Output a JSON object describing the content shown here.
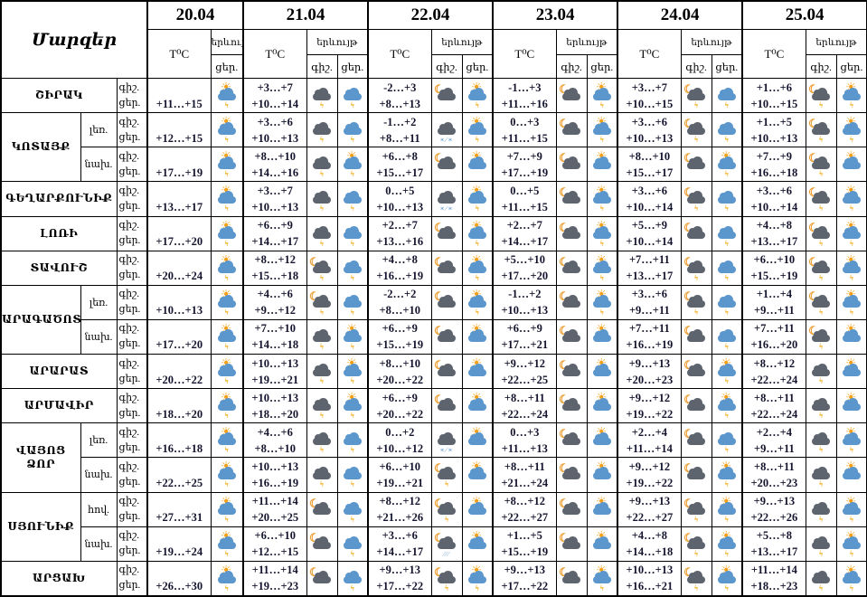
{
  "table": {
    "title_cell": "Մարզեր",
    "dates": [
      "20.04",
      "21.04",
      "22.04",
      "23.04",
      "24.04",
      "25.04"
    ],
    "col_headers": {
      "temp": "T⁰C",
      "weather": "երևույթ",
      "night": "գիշ.",
      "day": "ցեր."
    },
    "colors": {
      "border": "#000000",
      "temp_text": "#14142e",
      "sun": "#f49f16",
      "moon": "#ec9c2e",
      "cloud_blue": "#5b96cc",
      "cloud_dark": "#5e646e",
      "lightning": "#f2a80e"
    },
    "regions": [
      {
        "name": "ՇԻՐԱԿ",
        "rows": [
          {
            "sub": "",
            "cells": [
              {
                "n": "",
                "d": "+11…+15",
                "ni": "",
                "di": "sun-storm"
              },
              {
                "n": "+3…+7",
                "d": "+10…+14",
                "ni": "dark-storm",
                "di": "blue-storm"
              },
              {
                "n": "-2…+3",
                "d": "+8…+13",
                "ni": "moon-dark",
                "di": "sun-storm"
              },
              {
                "n": "-1…+3",
                "d": "+11…+16",
                "ni": "moon-dark",
                "di": "sun-storm"
              },
              {
                "n": "+3…+7",
                "d": "+10…+15",
                "ni": "moon-dark-storm",
                "di": "blue-storm"
              },
              {
                "n": "+1…+6",
                "d": "+10…+15",
                "ni": "moon-dark-storm",
                "di": "sun-storm"
              }
            ]
          }
        ]
      },
      {
        "name": "ԿՈՏԱՅՔ",
        "rows": [
          {
            "sub": "լեռ.",
            "cells": [
              {
                "n": "",
                "d": "+12…+15",
                "ni": "",
                "di": "sun-storm"
              },
              {
                "n": "+3…+6",
                "d": "+10…+13",
                "ni": "dark-storm",
                "di": "blue-storm"
              },
              {
                "n": "-1…+2",
                "d": "+8…+11",
                "ni": "dark-sleet",
                "di": "sun-storm"
              },
              {
                "n": "0…+3",
                "d": "+11…+15",
                "ni": "moon-dark",
                "di": "sun-storm"
              },
              {
                "n": "+3…+6",
                "d": "+10…+13",
                "ni": "moon-dark-storm",
                "di": "blue-storm"
              },
              {
                "n": "+1…+5",
                "d": "+10…+13",
                "ni": "moon-dark-storm",
                "di": "sun-storm"
              }
            ]
          },
          {
            "sub": "նախ.",
            "cells": [
              {
                "n": "",
                "d": "+17…+19",
                "ni": "",
                "di": "sun-storm"
              },
              {
                "n": "+8…+10",
                "d": "+14…+16",
                "ni": "dark-storm",
                "di": "sun-storm"
              },
              {
                "n": "+6…+8",
                "d": "+15…+17",
                "ni": "moon-dark",
                "di": "sun-cloud"
              },
              {
                "n": "+7…+9",
                "d": "+17…+19",
                "ni": "moon-dark",
                "di": "sun-cloud"
              },
              {
                "n": "+8…+10",
                "d": "+15…+17",
                "ni": "moon-dark",
                "di": "sun-storm"
              },
              {
                "n": "+7…+9",
                "d": "+16…+18",
                "ni": "moon-dark-storm",
                "di": "sun-cloud"
              }
            ]
          }
        ]
      },
      {
        "name": "ԳԵՂԱՐՔՈՒՆԻՔ",
        "rows": [
          {
            "sub": "",
            "cells": [
              {
                "n": "",
                "d": "+13…+17",
                "ni": "",
                "di": "sun-storm"
              },
              {
                "n": "+3…+7",
                "d": "+10…+13",
                "ni": "dark-storm",
                "di": "blue-storm"
              },
              {
                "n": "0…+5",
                "d": "+10…+13",
                "ni": "dark-sleet",
                "di": "sun-storm"
              },
              {
                "n": "0…+5",
                "d": "+11…+15",
                "ni": "moon-dark",
                "di": "sun-storm"
              },
              {
                "n": "+3…+6",
                "d": "+10…+14",
                "ni": "moon-dark-storm",
                "di": "blue-storm"
              },
              {
                "n": "+3…+6",
                "d": "+10…+14",
                "ni": "moon-dark-storm",
                "di": "sun-storm"
              }
            ]
          }
        ]
      },
      {
        "name": "ԼՈՌԻ",
        "rows": [
          {
            "sub": "",
            "cells": [
              {
                "n": "",
                "d": "+17…+20",
                "ni": "",
                "di": "sun-storm"
              },
              {
                "n": "+6…+9",
                "d": "+14…+17",
                "ni": "dark-storm",
                "di": "blue-storm"
              },
              {
                "n": "+2…+7",
                "d": "+13…+16",
                "ni": "moon-dark",
                "di": "sun-storm"
              },
              {
                "n": "+2…+7",
                "d": "+14…+17",
                "ni": "moon-dark",
                "di": "sun-storm"
              },
              {
                "n": "+5…+9",
                "d": "+10…+14",
                "ni": "moon-dark",
                "di": "blue-storm"
              },
              {
                "n": "+4…+8",
                "d": "+13…+17",
                "ni": "moon-dark-storm",
                "di": "sun-storm"
              }
            ]
          }
        ]
      },
      {
        "name": "ՏԱՎՈՒՇ",
        "rows": [
          {
            "sub": "",
            "cells": [
              {
                "n": "",
                "d": "+20…+24",
                "ni": "",
                "di": "sun-storm"
              },
              {
                "n": "+8…+12",
                "d": "+15…+18",
                "ni": "moon-dark-storm",
                "di": "blue-storm"
              },
              {
                "n": "+4…+8",
                "d": "+16…+19",
                "ni": "moon-dark",
                "di": "sun-storm"
              },
              {
                "n": "+5…+10",
                "d": "+17…+20",
                "ni": "moon-dark",
                "di": "sun-storm"
              },
              {
                "n": "+7…+11",
                "d": "+13…+17",
                "ni": "moon-dark-storm",
                "di": "blue-storm"
              },
              {
                "n": "+6…+10",
                "d": "+15…+19",
                "ni": "moon-dark-storm",
                "di": "sun-storm"
              }
            ]
          }
        ]
      },
      {
        "name": "ԱՐԱԳԱԾՈՏՆ",
        "rows": [
          {
            "sub": "լեռ.",
            "cells": [
              {
                "n": "",
                "d": "+10…+13",
                "ni": "",
                "di": "sun-storm"
              },
              {
                "n": "+4…+6",
                "d": "+9…+12",
                "ni": "moon-dark-storm",
                "di": "blue-storm"
              },
              {
                "n": "-2…+2",
                "d": "+8…+10",
                "ni": "moon-dark",
                "di": "sun-storm"
              },
              {
                "n": "-1…+2",
                "d": "+10…+13",
                "ni": "moon-dark",
                "di": "sun-storm"
              },
              {
                "n": "+3…+6",
                "d": "+9…+11",
                "ni": "moon-dark-storm",
                "di": "blue-storm"
              },
              {
                "n": "+1…+4",
                "d": "+9…+11",
                "ni": "moon-dark-storm",
                "di": "sun-storm"
              }
            ]
          },
          {
            "sub": "նախ.",
            "cells": [
              {
                "n": "",
                "d": "+17…+20",
                "ni": "",
                "di": "sun-storm"
              },
              {
                "n": "+7…+10",
                "d": "+14…+18",
                "ni": "dark-storm",
                "di": "sun-storm"
              },
              {
                "n": "+6…+9",
                "d": "+15…+19",
                "ni": "moon-dark",
                "di": "sun-cloud"
              },
              {
                "n": "+6…+9",
                "d": "+17…+21",
                "ni": "moon-dark",
                "di": "sun-cloud"
              },
              {
                "n": "+7…+11",
                "d": "+16…+19",
                "ni": "moon-dark",
                "di": "blue-storm"
              },
              {
                "n": "+7…+11",
                "d": "+16…+20",
                "ni": "moon-dark-storm",
                "di": "sun-cloud"
              }
            ]
          }
        ]
      },
      {
        "name": "ԱՐԱՐԱՏ",
        "rows": [
          {
            "sub": "",
            "cells": [
              {
                "n": "",
                "d": "+20…+22",
                "ni": "",
                "di": "sun-storm"
              },
              {
                "n": "+10…+13",
                "d": "+19…+21",
                "ni": "dark-storm",
                "di": "sun-storm"
              },
              {
                "n": "+8…+10",
                "d": "+20…+22",
                "ni": "moon-dark",
                "di": "sun-cloud"
              },
              {
                "n": "+9…+12",
                "d": "+22…+25",
                "ni": "moon-dark",
                "di": "sun-cloud"
              },
              {
                "n": "+9…+13",
                "d": "+20…+23",
                "ni": "moon-dark",
                "di": "sun-storm"
              },
              {
                "n": "+8…+12",
                "d": "+22…+24",
                "ni": "dark-storm",
                "di": "sun-cloud"
              }
            ]
          }
        ]
      },
      {
        "name": "ԱՐՄԱՎԻՐ",
        "rows": [
          {
            "sub": "",
            "cells": [
              {
                "n": "",
                "d": "+18…+20",
                "ni": "",
                "di": "sun-storm"
              },
              {
                "n": "+10…+13",
                "d": "+18…+20",
                "ni": "dark-storm",
                "di": "sun-storm"
              },
              {
                "n": "+6…+9",
                "d": "+20…+22",
                "ni": "moon-dark",
                "di": "sun-cloud"
              },
              {
                "n": "+8…+11",
                "d": "+22…+24",
                "ni": "moon-dark",
                "di": "sun-cloud"
              },
              {
                "n": "+9…+12",
                "d": "+19…+22",
                "ni": "moon-dark",
                "di": "sun-storm"
              },
              {
                "n": "+8…+11",
                "d": "+22…+24",
                "ni": "dark-storm",
                "di": "sun-cloud"
              }
            ]
          }
        ]
      },
      {
        "name": "ՎԱՅՈՑ ՁՈՐ",
        "rows": [
          {
            "sub": "լեռ.",
            "cells": [
              {
                "n": "",
                "d": "+16…+18",
                "ni": "",
                "di": "sun-storm"
              },
              {
                "n": "+4…+6",
                "d": "+8…+10",
                "ni": "dark-storm",
                "di": "blue-storm"
              },
              {
                "n": "0…+2",
                "d": "+10…+12",
                "ni": "dark-sleet",
                "di": "sun-cloud"
              },
              {
                "n": "0…+3",
                "d": "+11…+13",
                "ni": "moon-dark",
                "di": "sun-cloud"
              },
              {
                "n": "+2…+4",
                "d": "+11…+14",
                "ni": "moon-dark",
                "di": "blue-storm"
              },
              {
                "n": "+2…+4",
                "d": "+9…+11",
                "ni": "dark-storm",
                "di": "sun-storm"
              }
            ]
          },
          {
            "sub": "նախ.",
            "cells": [
              {
                "n": "",
                "d": "+22…+25",
                "ni": "",
                "di": "sun-storm"
              },
              {
                "n": "+10…+13",
                "d": "+16…+19",
                "ni": "dark-storm",
                "di": "blue-storm"
              },
              {
                "n": "+6…+10",
                "d": "+19…+21",
                "ni": "moon-dark-storm",
                "di": "sun-cloud"
              },
              {
                "n": "+8…+11",
                "d": "+21…+24",
                "ni": "moon-dark",
                "di": "sun-cloud"
              },
              {
                "n": "+9…+12",
                "d": "+19…+22",
                "ni": "moon-dark",
                "di": "sun-storm"
              },
              {
                "n": "+8…+11",
                "d": "+20…+23",
                "ni": "dark-storm",
                "di": "sun-cloud"
              }
            ]
          }
        ]
      },
      {
        "name": "ՍՅՈՒՆԻՔ",
        "rows": [
          {
            "sub": "հով.",
            "cells": [
              {
                "n": "",
                "d": "+27…+31",
                "ni": "",
                "di": "sun-storm"
              },
              {
                "n": "+11…+14",
                "d": "+20…+25",
                "ni": "moon-dark",
                "di": "blue-storm"
              },
              {
                "n": "+8…+12",
                "d": "+21…+26",
                "ni": "moon-dark-storm",
                "di": "sun-cloud"
              },
              {
                "n": "+8…+12",
                "d": "+22…+27",
                "ni": "moon-dark",
                "di": "sun-cloud"
              },
              {
                "n": "+9…+13",
                "d": "+22…+27",
                "ni": "moon-dark-storm",
                "di": "sun-storm"
              },
              {
                "n": "+9…+13",
                "d": "+22…+26",
                "ni": "dark-storm",
                "di": "sun-storm"
              }
            ]
          },
          {
            "sub": "նախ.",
            "cells": [
              {
                "n": "",
                "d": "+19…+24",
                "ni": "",
                "di": "sun-storm"
              },
              {
                "n": "+6…+10",
                "d": "+12…+15",
                "ni": "moon-dark",
                "di": "blue-storm"
              },
              {
                "n": "+3…+6",
                "d": "+14…+17",
                "ni": "moon-dark-rain",
                "di": "sun-cloud"
              },
              {
                "n": "+1…+5",
                "d": "+15…+19",
                "ni": "moon-dark",
                "di": "sun-cloud"
              },
              {
                "n": "+4…+8",
                "d": "+14…+18",
                "ni": "moon-dark-storm",
                "di": "sun-storm"
              },
              {
                "n": "+5…+8",
                "d": "+13…+17",
                "ni": "dark-storm",
                "di": "sun-storm"
              }
            ]
          }
        ]
      },
      {
        "name": "ԱՐՑԱԽ",
        "rows": [
          {
            "sub": "",
            "cells": [
              {
                "n": "",
                "d": "+26…+30",
                "ni": "",
                "di": "sun-storm"
              },
              {
                "n": "+11…+14",
                "d": "+19…+23",
                "ni": "moon-dark",
                "di": "blue-storm"
              },
              {
                "n": "+9…+13",
                "d": "+17…+22",
                "ni": "moon-dark-storm",
                "di": "sun-storm"
              },
              {
                "n": "+9…+13",
                "d": "+17…+22",
                "ni": "moon-dark",
                "di": "sun-storm"
              },
              {
                "n": "+10…+13",
                "d": "+16…+21",
                "ni": "moon-dark-storm",
                "di": "sun-storm"
              },
              {
                "n": "+11…+14",
                "d": "+18…+23",
                "ni": "dark-storm",
                "di": "sun-storm"
              }
            ]
          }
        ]
      }
    ]
  }
}
